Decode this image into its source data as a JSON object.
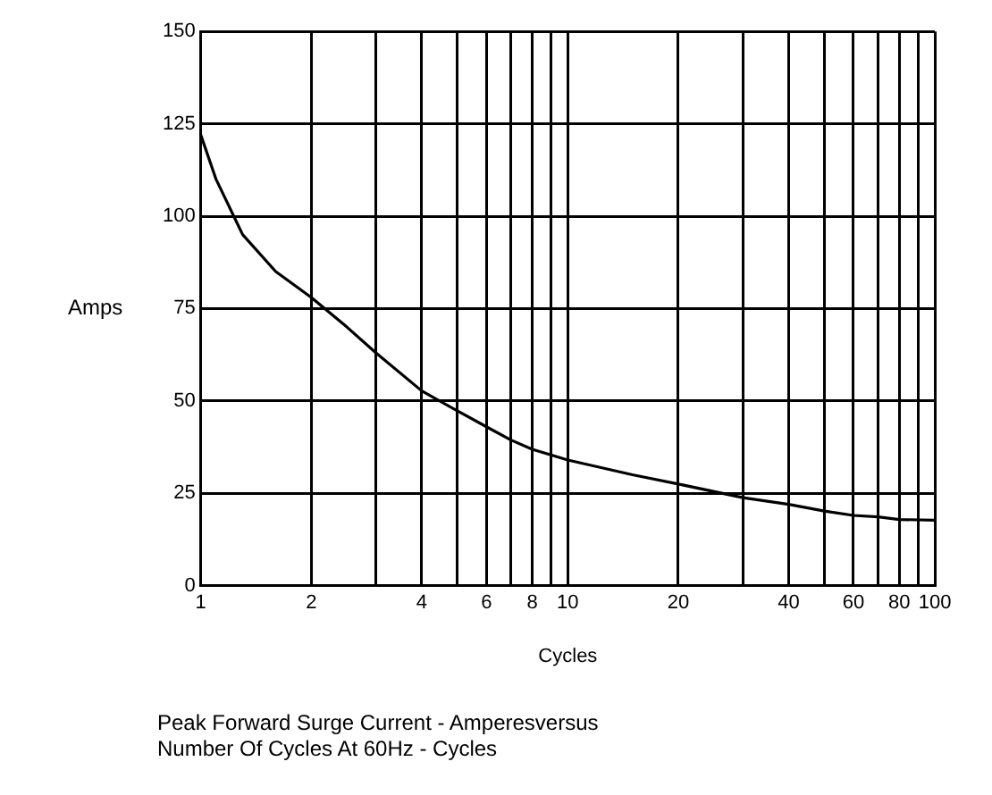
{
  "chart_data": {
    "type": "line",
    "title": "Peak Forward Surge Current - Amperesversus\nNumber Of Cycles At 60Hz - Cycles",
    "xlabel": "Cycles",
    "ylabel": "Amps",
    "x": [
      1,
      1.1,
      1.3,
      1.6,
      2,
      2.5,
      3,
      4,
      5,
      6,
      7,
      8,
      10,
      15,
      20,
      30,
      40,
      50,
      60,
      70,
      80,
      100
    ],
    "series": [
      {
        "color": "#000000",
        "values": [
          122,
          110,
          95,
          85,
          78,
          70,
          63,
          52.7,
          47.3,
          43,
          39.4,
          36.9,
          34,
          30,
          27.5,
          23.8,
          22,
          20.2,
          19,
          18.6,
          17.9,
          17.7
        ]
      }
    ],
    "log": "x",
    "xlim": [
      1,
      100
    ],
    "ylim": [
      0,
      150
    ],
    "xticks": [
      1,
      2,
      {
        "value": 3,
        "label": null
      },
      4,
      {
        "value": 5,
        "label": null
      },
      6,
      {
        "value": 7,
        "label": null
      },
      8,
      {
        "value": 9,
        "label": null
      },
      10,
      20,
      {
        "value": 30,
        "label": null
      },
      40,
      {
        "value": 50,
        "label": null
      },
      60,
      {
        "value": 70,
        "label": null
      },
      80,
      {
        "value": 90,
        "label": null
      },
      100
    ],
    "yticks": [
      0,
      25,
      50,
      75,
      100,
      125,
      150
    ],
    "grid": true,
    "legend": false,
    "marker": "none",
    "line_style": "solid"
  }
}
